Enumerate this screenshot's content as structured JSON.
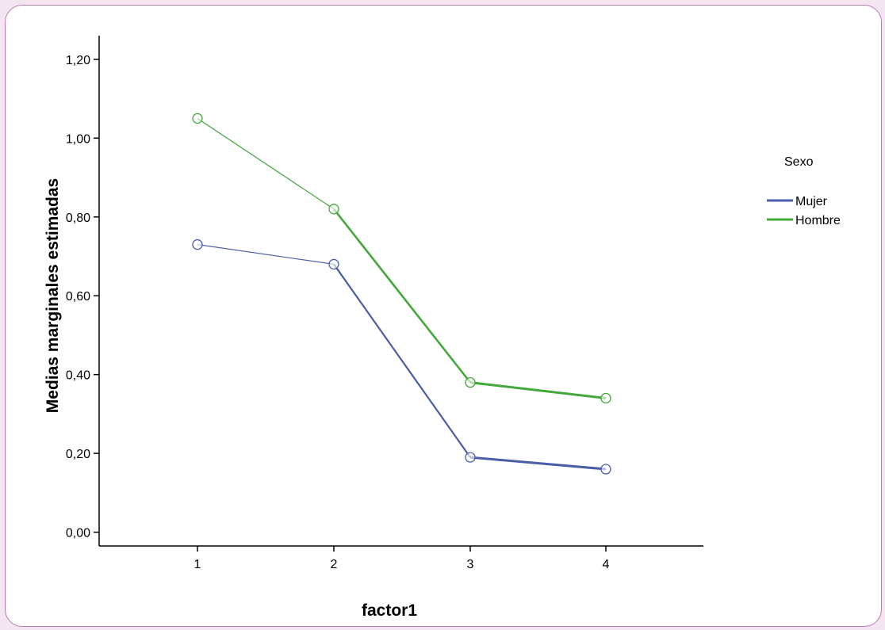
{
  "chart_data": {
    "type": "line",
    "xlabel": "factor1",
    "ylabel": "Medias marginales estimadas",
    "categories": [
      "1",
      "2",
      "3",
      "4"
    ],
    "ylim": [
      -0.035,
      1.26
    ],
    "yticks": [
      "0,00",
      "0,20",
      "0,40",
      "0,60",
      "0,80",
      "1,00",
      "1,20"
    ],
    "ytick_values": [
      0,
      0.2,
      0.4,
      0.6,
      0.8,
      1.0,
      1.2
    ],
    "legend_title": "Sexo",
    "legend_position": "right",
    "grid": false,
    "series": [
      {
        "name": "Mujer",
        "color": "#4a5ea8",
        "values": [
          0.73,
          0.68,
          0.19,
          0.16
        ]
      },
      {
        "name": "Hombre",
        "color": "#43a73a",
        "values": [
          1.05,
          0.82,
          0.38,
          0.34
        ]
      }
    ]
  }
}
